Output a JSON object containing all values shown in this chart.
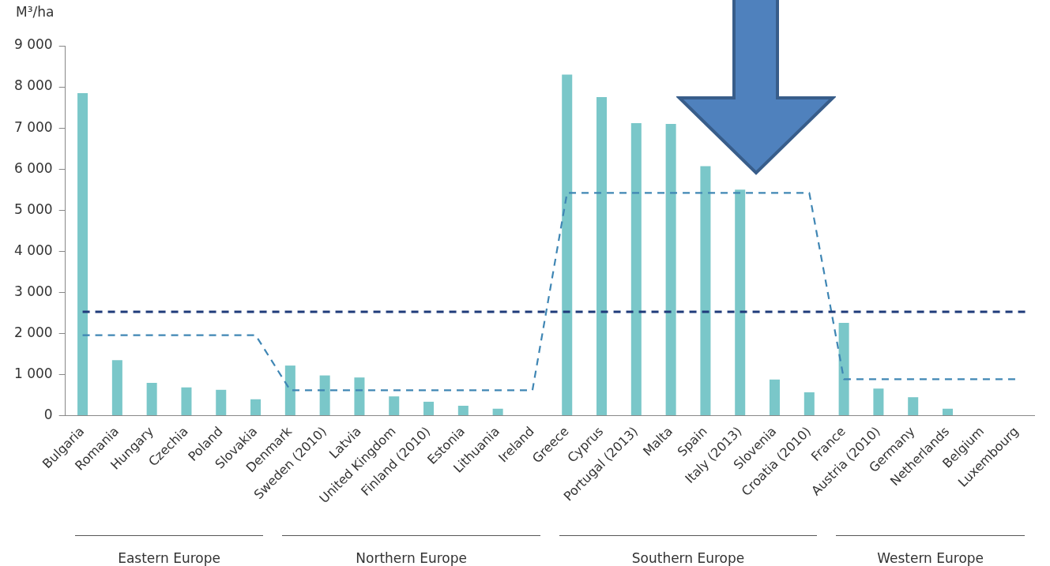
{
  "chart_data": {
    "type": "bar",
    "ylabel": "M³/ha",
    "categories": [
      "Bulgaria",
      "Romania",
      "Hungary",
      "Czechia",
      "Poland",
      "Slovakia",
      "Denmark",
      "Sweden (2010)",
      "Latvia",
      "United Kingdom",
      "Finland (2010)",
      "Estonia",
      "Lithuania",
      "Ireland",
      "Greece",
      "Cyprus",
      "Portugal (2013)",
      "Malta",
      "Spain",
      "Italy (2013)",
      "Slovenia",
      "Croatia (2010)",
      "France",
      "Austria (2010)",
      "Germany",
      "Netherlands",
      "Belgium",
      "Luxembourg"
    ],
    "series": [
      {
        "color": "#7ac7c9",
        "values": [
          7850,
          1350,
          800,
          690,
          630,
          400,
          1220,
          980,
          930,
          470,
          340,
          240,
          170,
          null,
          8300,
          7750,
          7120,
          7100,
          6070,
          5500,
          880,
          570,
          2260,
          660,
          450,
          170,
          null,
          null
        ]
      },
      {
        "type": "line",
        "color": "#3f86b4",
        "line_style": "dashed",
        "marker": "none",
        "values": [
          1960,
          1960,
          1960,
          1960,
          1960,
          1960,
          620,
          620,
          620,
          620,
          620,
          620,
          620,
          620,
          5420,
          5420,
          5420,
          5420,
          5420,
          5420,
          5420,
          5420,
          890,
          890,
          890,
          890,
          890,
          890
        ]
      }
    ],
    "ref_lines": [
      {
        "axis": "y",
        "value": 2530,
        "color": "#1f3b7a",
        "line_style": "dashed"
      }
    ],
    "ylim": [
      0,
      9000
    ],
    "yticks": [
      0,
      {
        "value": 1000,
        "label": "1 000"
      },
      {
        "value": 2000,
        "label": "2 000"
      },
      {
        "value": 3000,
        "label": "3 000"
      },
      {
        "value": 4000,
        "label": "4 000"
      },
      {
        "value": 5000,
        "label": "5 000"
      },
      {
        "value": 6000,
        "label": "6 000"
      },
      {
        "value": 7000,
        "label": "7 000"
      },
      {
        "value": 8000,
        "label": "8 000"
      },
      {
        "value": 9000,
        "label": "9 000"
      }
    ],
    "annotations": [
      "Eastern Europe",
      "Northern Europe",
      "Southern Europe",
      "Western Europe"
    ],
    "grid": false,
    "legend": false
  }
}
